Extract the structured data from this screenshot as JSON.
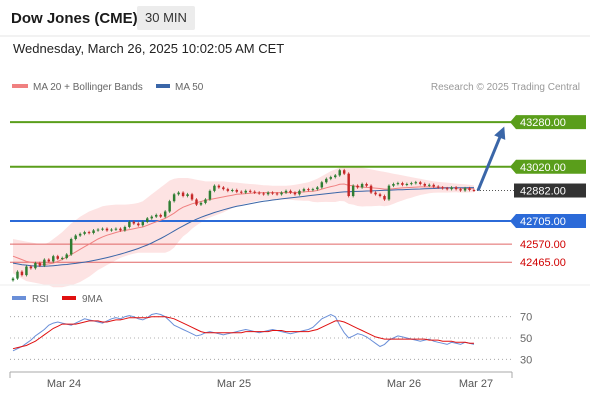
{
  "header": {
    "title": "Dow Jones (CME)",
    "interval": "30 MIN",
    "datetime": "Wednesday, March 26, 2025 10:02:05 AM CET"
  },
  "legend": {
    "ma20": "MA 20 + Bollinger Bands",
    "ma50": "MA 50",
    "credit": "Research © 2025 Trading Central"
  },
  "colors": {
    "up": "#2e7d32",
    "down": "#c62828",
    "ma20": "#f08080",
    "band_fill": "#fde3e3",
    "ma50": "#3a66a8",
    "resistance": "#5a9e1b",
    "support_blue": "#2b6ad8",
    "support_red": "#e06666",
    "current": "#333333",
    "arrow": "#3a66a8",
    "rsi": "#6a8fd8",
    "rsi_ma": "#e01010"
  },
  "chart_data": [
    {
      "type": "candlestick",
      "title": "",
      "xlabel": "",
      "ylabel": "",
      "x_ticks": [
        "Mar 24",
        "Mar 25",
        "Mar 26",
        "Mar 27"
      ],
      "ylim": [
        42350,
        43420
      ],
      "levels": [
        {
          "value": 43280,
          "label": "43280.00",
          "kind": "resistance"
        },
        {
          "value": 43020,
          "label": "43020.00",
          "kind": "resistance"
        },
        {
          "value": 42882,
          "label": "42882.00",
          "kind": "current"
        },
        {
          "value": 42705,
          "label": "42705.00",
          "kind": "support_blue"
        },
        {
          "value": 42570,
          "label": "42570.00",
          "kind": "support_red"
        },
        {
          "value": 42465,
          "label": "42465.00",
          "kind": "support_red"
        }
      ],
      "close": [
        42370,
        42410,
        42390,
        42440,
        42430,
        42460,
        42445,
        42480,
        42470,
        42500,
        42485,
        42490,
        42510,
        42600,
        42620,
        42630,
        42640,
        42635,
        42650,
        42655,
        42660,
        42650,
        42655,
        42660,
        42650,
        42670,
        42700,
        42690,
        42680,
        42700,
        42720,
        42730,
        42740,
        42730,
        42760,
        42820,
        42860,
        42870,
        42850,
        42860,
        42830,
        42800,
        42810,
        42830,
        42880,
        42910,
        42900,
        42890,
        42880,
        42885,
        42875,
        42870,
        42880,
        42875,
        42870,
        42865,
        42860,
        42870,
        42865,
        42860,
        42870,
        42880,
        42870,
        42860,
        42880,
        42890,
        42885,
        42890,
        42900,
        42930,
        42950,
        42960,
        42970,
        43000,
        42980,
        42850,
        42910,
        42900,
        42920,
        42910,
        42870,
        42860,
        42850,
        42830,
        42910,
        42920,
        42925,
        42915,
        42920,
        42925,
        42930,
        42920,
        42910,
        42915,
        42905,
        42900,
        42895,
        42890,
        42900,
        42890,
        42882,
        42895,
        42885,
        42882
      ],
      "ma20": [
        42500,
        42490,
        42480,
        42470,
        42465,
        42460,
        42455,
        42452,
        42455,
        42460,
        42470,
        42480,
        42495,
        42510,
        42525,
        42540,
        42555,
        42570,
        42585,
        42600,
        42612,
        42622,
        42630,
        42638,
        42645,
        42650,
        42655,
        42660,
        42665,
        42670,
        42680,
        42690,
        42700,
        42710,
        42720,
        42735,
        42750,
        42770,
        42785,
        42795,
        42805,
        42812,
        42818,
        42825,
        42830,
        42835,
        42840,
        42845,
        42850,
        42855,
        42860,
        42862,
        42864,
        42866,
        42868,
        42869,
        42870,
        42870,
        42870,
        42870,
        42870,
        42870,
        42870,
        42870,
        42872,
        42874,
        42876,
        42878,
        42882,
        42890,
        42898,
        42905,
        42910,
        42918,
        42920,
        42912,
        42910,
        42905,
        42902,
        42900,
        42898,
        42896,
        42894,
        42890,
        42890,
        42892,
        42895,
        42897,
        42899,
        42900,
        42902,
        42903,
        42903,
        42903,
        42902,
        42901,
        42900,
        42899,
        42898,
        42897,
        42895,
        42894,
        42893,
        42892
      ],
      "upper_band": [
        42600,
        42595,
        42590,
        42585,
        42580,
        42575,
        42570,
        42570,
        42580,
        42600,
        42620,
        42640,
        42665,
        42690,
        42710,
        42730,
        42745,
        42760,
        42770,
        42780,
        42790,
        42795,
        42798,
        42800,
        42800,
        42800,
        42802,
        42805,
        42810,
        42820,
        42840,
        42860,
        42880,
        42900,
        42920,
        42940,
        42950,
        42955,
        42955,
        42955,
        42950,
        42945,
        42940,
        42935,
        42935,
        42935,
        42935,
        42935,
        42932,
        42930,
        42928,
        42925,
        42922,
        42920,
        42918,
        42915,
        42913,
        42912,
        42910,
        42910,
        42910,
        42910,
        42912,
        42915,
        42920,
        42925,
        42930,
        42940,
        42950,
        42965,
        42980,
        42995,
        43005,
        43015,
        43020,
        43020,
        43020,
        43018,
        43015,
        43010,
        43005,
        43000,
        42995,
        42990,
        42985,
        42980,
        42975,
        42970,
        42965,
        42960,
        42955,
        42950,
        42945,
        42940,
        42935,
        42932,
        42930,
        42928,
        42925,
        42922,
        42920,
        42918,
        42915,
        42912
      ],
      "lower_band": [
        42400,
        42385,
        42370,
        42355,
        42350,
        42345,
        42340,
        42335,
        42330,
        42320,
        42320,
        42320,
        42325,
        42330,
        42340,
        42350,
        42365,
        42380,
        42400,
        42420,
        42434,
        42449,
        42462,
        42476,
        42490,
        42500,
        42508,
        42515,
        42520,
        42520,
        42520,
        42520,
        42520,
        42520,
        42520,
        42530,
        42550,
        42585,
        42615,
        42635,
        42660,
        42679,
        42696,
        42715,
        42725,
        42735,
        42745,
        42755,
        42768,
        42780,
        42792,
        42799,
        42806,
        42812,
        42818,
        42823,
        42827,
        42828,
        42830,
        42830,
        42830,
        42830,
        42828,
        42825,
        42824,
        42823,
        42822,
        42816,
        42814,
        42815,
        42816,
        42815,
        42815,
        42821,
        42820,
        42804,
        42800,
        42792,
        42789,
        42790,
        42791,
        42792,
        42793,
        42790,
        42795,
        42804,
        42815,
        42824,
        42833,
        42840,
        42849,
        42856,
        42861,
        42866,
        42869,
        42870,
        42870,
        42870,
        42871,
        42872,
        42870,
        42870,
        42871,
        42872
      ],
      "ma50": [
        42460,
        42455,
        42450,
        42448,
        42445,
        42443,
        42442,
        42442,
        42443,
        42445,
        42447,
        42450,
        42452,
        42455,
        42458,
        42462,
        42466,
        42470,
        42475,
        42480,
        42486,
        42492,
        42498,
        42505,
        42512,
        42520,
        42528,
        42536,
        42545,
        42555,
        42565,
        42577,
        42590,
        42603,
        42617,
        42632,
        42647,
        42662,
        42676,
        42690,
        42703,
        42715,
        42726,
        42736,
        42745,
        42754,
        42762,
        42770,
        42777,
        42784,
        42790,
        42795,
        42800,
        42805,
        42810,
        42815,
        42819,
        42823,
        42827,
        42830,
        42833,
        42836,
        42839,
        42842,
        42845,
        42848,
        42851,
        42854,
        42857,
        42860,
        42863,
        42866,
        42869,
        42872,
        42874,
        42875,
        42876,
        42877,
        42878,
        42879,
        42880,
        42881,
        42882,
        42883,
        42884,
        42885,
        42886,
        42887,
        42888,
        42889,
        42890,
        42891,
        42892,
        42893,
        42894,
        42895,
        42896,
        42897,
        42897,
        42898,
        42898,
        42898,
        42899,
        42899
      ],
      "projection": {
        "from": 42882,
        "to": 43280
      }
    },
    {
      "type": "line",
      "title": "",
      "xlabel": "",
      "ylabel": "",
      "x_ticks": [
        "Mar 24",
        "Mar 25",
        "Mar 26",
        "Mar 27"
      ],
      "ylim": [
        20,
        80
      ],
      "y_ticks": [
        70,
        50,
        30
      ],
      "series": [
        {
          "name": "RSI",
          "values": [
            38,
            40,
            42,
            45,
            48,
            52,
            55,
            58,
            62,
            64,
            65,
            64,
            63,
            62,
            64,
            66,
            68,
            67,
            66,
            65,
            64,
            66,
            68,
            69,
            68,
            70,
            71,
            70,
            68,
            67,
            69,
            72,
            73,
            72,
            70,
            66,
            62,
            60,
            58,
            56,
            54,
            52,
            53,
            55,
            56,
            55,
            54,
            53,
            54,
            55,
            56,
            57,
            58,
            57,
            56,
            55,
            56,
            57,
            58,
            57,
            56,
            55,
            54,
            55,
            56,
            57,
            58,
            60,
            64,
            68,
            70,
            72,
            70,
            62,
            55,
            50,
            52,
            54,
            53,
            51,
            48,
            45,
            42,
            44,
            48,
            50,
            52,
            51,
            50,
            49,
            48,
            47,
            48,
            49,
            47,
            46,
            45,
            44,
            46,
            45,
            44,
            46,
            45,
            44
          ]
        },
        {
          "name": "9MA",
          "values": [
            40,
            41,
            42,
            43,
            45,
            47,
            50,
            53,
            56,
            59,
            61,
            63,
            63,
            63,
            63,
            64,
            65,
            66,
            66,
            66,
            65,
            65,
            66,
            67,
            67,
            68,
            69,
            69,
            69,
            69,
            69,
            70,
            70,
            70,
            70,
            69,
            68,
            66,
            64,
            62,
            60,
            58,
            56,
            55,
            55,
            55,
            55,
            55,
            55,
            55,
            55,
            55,
            56,
            56,
            56,
            56,
            56,
            56,
            57,
            57,
            57,
            56,
            56,
            56,
            56,
            56,
            56,
            57,
            58,
            60,
            62,
            64,
            66,
            66,
            65,
            63,
            61,
            59,
            57,
            55,
            53,
            51,
            50,
            49,
            49,
            49,
            49,
            49,
            49,
            49,
            49,
            49,
            49,
            48,
            48,
            48,
            47,
            47,
            47,
            46,
            46,
            46,
            45,
            45
          ]
        }
      ]
    }
  ]
}
